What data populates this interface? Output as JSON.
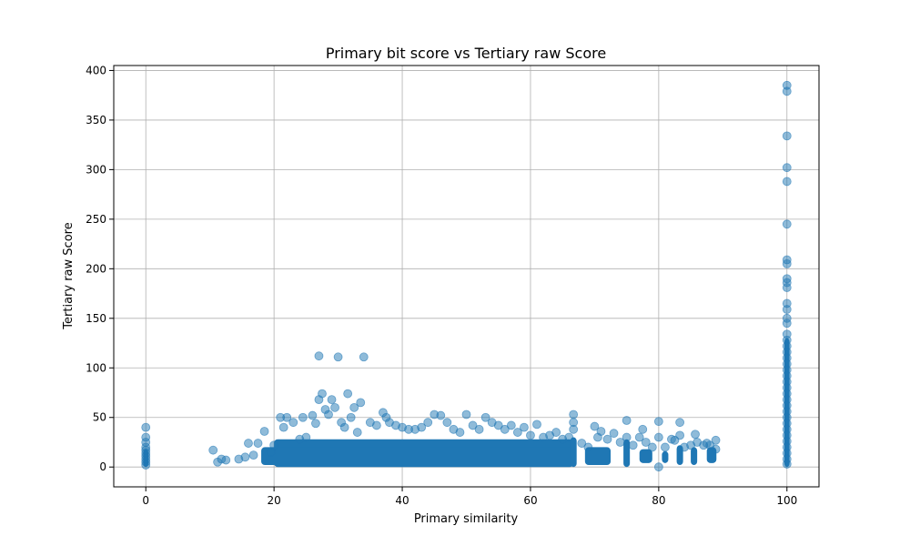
{
  "chart_data": {
    "type": "scatter",
    "title": "Primary bit score vs Tertiary raw Score",
    "xlabel": "Primary similarity",
    "ylabel": "Tertiary raw Score",
    "xlim": [
      -5,
      105
    ],
    "ylim": [
      -20,
      405
    ],
    "xticks": [
      0,
      20,
      40,
      60,
      80,
      100
    ],
    "yticks": [
      0,
      50,
      100,
      150,
      200,
      250,
      300,
      350,
      400
    ],
    "grid": true,
    "marker_color": "#1f77b4",
    "marker_alpha": 0.5,
    "points": [
      [
        0,
        2
      ],
      [
        0,
        5
      ],
      [
        0,
        8
      ],
      [
        0,
        11
      ],
      [
        0,
        14
      ],
      [
        0,
        17
      ],
      [
        0,
        20
      ],
      [
        0,
        25
      ],
      [
        0,
        30
      ],
      [
        0,
        40
      ],
      [
        10.5,
        17
      ],
      [
        11.2,
        5
      ],
      [
        11.8,
        8
      ],
      [
        12.5,
        7
      ],
      [
        14.5,
        8
      ],
      [
        15.5,
        10
      ],
      [
        16,
        24
      ],
      [
        16.8,
        12
      ],
      [
        17.5,
        24
      ],
      [
        18.5,
        36
      ],
      [
        19.5,
        15
      ],
      [
        20,
        22
      ],
      [
        21,
        50
      ],
      [
        21.5,
        40
      ],
      [
        22,
        50
      ],
      [
        23,
        45
      ],
      [
        24,
        28
      ],
      [
        24.5,
        50
      ],
      [
        25,
        30
      ],
      [
        26,
        52
      ],
      [
        26.5,
        44
      ],
      [
        27,
        112
      ],
      [
        27,
        68
      ],
      [
        27.5,
        74
      ],
      [
        28,
        58
      ],
      [
        28.5,
        53
      ],
      [
        29,
        68
      ],
      [
        29.5,
        60
      ],
      [
        30,
        111
      ],
      [
        30.5,
        45
      ],
      [
        31,
        40
      ],
      [
        31.5,
        74
      ],
      [
        32,
        50
      ],
      [
        32.5,
        60
      ],
      [
        33,
        35
      ],
      [
        33.5,
        65
      ],
      [
        34,
        111
      ],
      [
        35,
        45
      ],
      [
        36,
        42
      ],
      [
        37,
        55
      ],
      [
        37.5,
        50
      ],
      [
        38,
        45
      ],
      [
        39,
        42
      ],
      [
        40,
        40
      ],
      [
        41,
        38
      ],
      [
        42,
        38
      ],
      [
        43,
        40
      ],
      [
        44,
        45
      ],
      [
        45,
        53
      ],
      [
        46,
        52
      ],
      [
        47,
        45
      ],
      [
        48,
        38
      ],
      [
        49,
        35
      ],
      [
        50,
        53
      ],
      [
        51,
        42
      ],
      [
        52,
        38
      ],
      [
        53,
        50
      ],
      [
        54,
        45
      ],
      [
        55,
        42
      ],
      [
        56,
        38
      ],
      [
        57,
        42
      ],
      [
        58,
        35
      ],
      [
        59,
        40
      ],
      [
        60,
        32
      ],
      [
        61,
        43
      ],
      [
        62,
        30
      ],
      [
        63,
        32
      ],
      [
        64,
        35
      ],
      [
        65,
        28
      ],
      [
        66,
        30
      ],
      [
        66.7,
        53
      ],
      [
        66.7,
        45
      ],
      [
        66.7,
        38
      ],
      [
        68,
        24
      ],
      [
        69,
        20
      ],
      [
        70,
        41
      ],
      [
        70.5,
        30
      ],
      [
        71,
        36
      ],
      [
        72,
        28
      ],
      [
        73,
        34
      ],
      [
        74,
        25
      ],
      [
        75,
        47
      ],
      [
        75,
        30
      ],
      [
        76,
        22
      ],
      [
        77,
        30
      ],
      [
        77.5,
        38
      ],
      [
        78,
        25
      ],
      [
        79,
        20
      ],
      [
        80,
        46
      ],
      [
        80,
        30
      ],
      [
        80,
        0
      ],
      [
        81,
        20
      ],
      [
        82,
        28
      ],
      [
        82.5,
        27
      ],
      [
        83.3,
        45
      ],
      [
        83.3,
        32
      ],
      [
        84,
        20
      ],
      [
        85,
        22
      ],
      [
        85.7,
        33
      ],
      [
        86,
        25
      ],
      [
        87,
        22
      ],
      [
        87.5,
        24
      ],
      [
        88,
        22
      ],
      [
        88.9,
        27
      ],
      [
        88.9,
        18
      ],
      [
        100,
        385
      ],
      [
        100,
        379
      ],
      [
        100,
        334
      ],
      [
        100,
        302
      ],
      [
        100,
        288
      ],
      [
        100,
        245
      ],
      [
        100,
        209
      ],
      [
        100,
        205
      ],
      [
        100,
        190
      ],
      [
        100,
        186
      ],
      [
        100,
        181
      ],
      [
        100,
        165
      ],
      [
        100,
        159
      ],
      [
        100,
        150
      ],
      [
        100,
        145
      ],
      [
        100,
        134
      ],
      [
        100,
        128
      ],
      [
        100,
        122
      ],
      [
        100,
        116
      ],
      [
        100,
        110
      ],
      [
        100,
        104
      ],
      [
        100,
        98
      ],
      [
        100,
        92
      ],
      [
        100,
        86
      ],
      [
        100,
        80
      ],
      [
        100,
        74
      ],
      [
        100,
        68
      ],
      [
        100,
        62
      ],
      [
        100,
        56
      ],
      [
        100,
        50
      ],
      [
        100,
        44
      ],
      [
        100,
        38
      ],
      [
        100,
        32
      ],
      [
        100,
        26
      ],
      [
        100,
        20
      ],
      [
        100,
        14
      ],
      [
        100,
        8
      ],
      [
        100,
        3
      ]
    ]
  }
}
